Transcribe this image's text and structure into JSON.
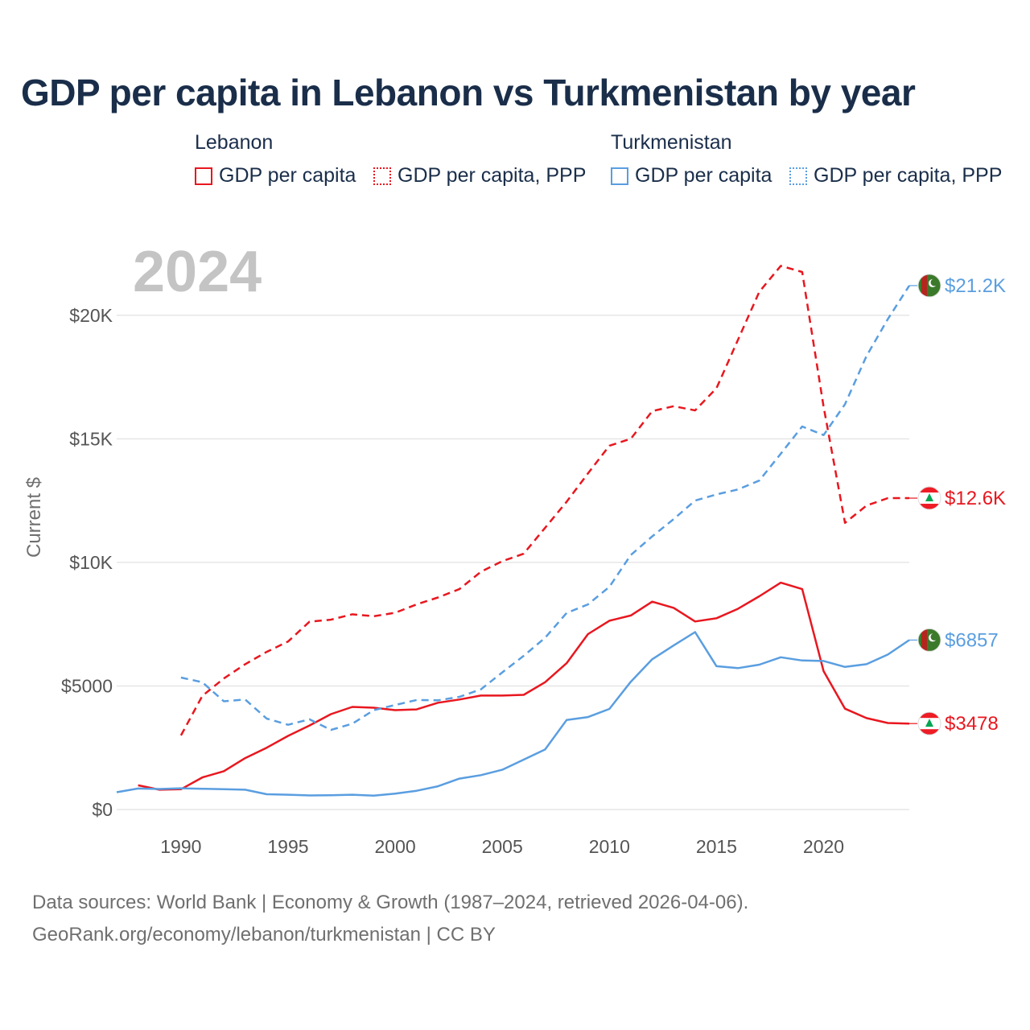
{
  "title": "GDP per capita in Lebanon vs Turkmenistan by year",
  "legend": {
    "groups": [
      {
        "name": "Lebanon",
        "color": "#e8171f",
        "items": [
          "GDP per capita",
          "GDP per capita, PPP"
        ]
      },
      {
        "name": "Turkmenistan",
        "color": "#5a9ee0",
        "items": [
          "GDP per capita",
          "GDP per capita, PPP"
        ]
      }
    ]
  },
  "footer": {
    "line1": "Data sources: World Bank | Economy & Growth (1987–2024, retrieved 2026-04-06).",
    "line2": "GeoRank.org/economy/lebanon/turkmenistan | CC BY"
  },
  "chart_data": {
    "type": "line",
    "title": "GDP per capita in Lebanon vs Turkmenistan by year",
    "year_label": "2024",
    "xlabel": "",
    "ylabel": "Current $",
    "xlim": [
      1987,
      2024
    ],
    "ylim": [
      0,
      22500
    ],
    "x_ticks": [
      1990,
      1995,
      2000,
      2005,
      2010,
      2015,
      2020
    ],
    "y_ticks": [
      {
        "value": 0,
        "label": "$0"
      },
      {
        "value": 5000,
        "label": "$5000"
      },
      {
        "value": 10000,
        "label": "$10K"
      },
      {
        "value": 15000,
        "label": "$15K"
      },
      {
        "value": 20000,
        "label": "$20K"
      }
    ],
    "grid": true,
    "series": [
      {
        "name": "Lebanon GDP per capita",
        "country": "Lebanon",
        "style": "solid",
        "color": "#e8171f",
        "end_label": "$3478",
        "flag": "lebanon",
        "points": [
          [
            1988,
            980
          ],
          [
            1989,
            800
          ],
          [
            1990,
            820
          ],
          [
            1991,
            1300
          ],
          [
            1992,
            1550
          ],
          [
            1993,
            2080
          ],
          [
            1994,
            2500
          ],
          [
            1995,
            2980
          ],
          [
            1996,
            3400
          ],
          [
            1997,
            3860
          ],
          [
            1998,
            4150
          ],
          [
            1999,
            4120
          ],
          [
            2000,
            4020
          ],
          [
            2001,
            4050
          ],
          [
            2002,
            4320
          ],
          [
            2003,
            4450
          ],
          [
            2004,
            4610
          ],
          [
            2005,
            4610
          ],
          [
            2006,
            4640
          ],
          [
            2007,
            5150
          ],
          [
            2008,
            5920
          ],
          [
            2009,
            7100
          ],
          [
            2010,
            7640
          ],
          [
            2011,
            7850
          ],
          [
            2012,
            8410
          ],
          [
            2013,
            8160
          ],
          [
            2014,
            7610
          ],
          [
            2015,
            7740
          ],
          [
            2016,
            8120
          ],
          [
            2017,
            8630
          ],
          [
            2018,
            9180
          ],
          [
            2019,
            8920
          ],
          [
            2020,
            5600
          ],
          [
            2021,
            4080
          ],
          [
            2022,
            3700
          ],
          [
            2023,
            3500
          ],
          [
            2024,
            3478
          ]
        ]
      },
      {
        "name": "Lebanon GDP per capita, PPP",
        "country": "Lebanon",
        "style": "dashed",
        "color": "#e8171f",
        "end_label": "$12.6K",
        "flag": "lebanon",
        "points": [
          [
            1990,
            3000
          ],
          [
            1991,
            4600
          ],
          [
            1992,
            5300
          ],
          [
            1993,
            5880
          ],
          [
            1994,
            6380
          ],
          [
            1995,
            6800
          ],
          [
            1996,
            7600
          ],
          [
            1997,
            7680
          ],
          [
            1998,
            7900
          ],
          [
            1999,
            7820
          ],
          [
            2000,
            7960
          ],
          [
            2001,
            8300
          ],
          [
            2002,
            8580
          ],
          [
            2003,
            8920
          ],
          [
            2004,
            9620
          ],
          [
            2005,
            10050
          ],
          [
            2006,
            10350
          ],
          [
            2007,
            11400
          ],
          [
            2008,
            12450
          ],
          [
            2009,
            13600
          ],
          [
            2010,
            14720
          ],
          [
            2011,
            15000
          ],
          [
            2012,
            16120
          ],
          [
            2013,
            16320
          ],
          [
            2014,
            16150
          ],
          [
            2015,
            17050
          ],
          [
            2016,
            19000
          ],
          [
            2017,
            20950
          ],
          [
            2018,
            22000
          ],
          [
            2019,
            21750
          ],
          [
            2020,
            16300
          ],
          [
            2021,
            11600
          ],
          [
            2022,
            12300
          ],
          [
            2023,
            12600
          ],
          [
            2024,
            12600
          ]
        ]
      },
      {
        "name": "Turkmenistan GDP per capita",
        "country": "Turkmenistan",
        "style": "solid",
        "color": "#5a9ee0",
        "end_label": "$6857",
        "flag": "turkmenistan",
        "points": [
          [
            1987,
            700
          ],
          [
            1988,
            850
          ],
          [
            1989,
            830
          ],
          [
            1990,
            860
          ],
          [
            1991,
            840
          ],
          [
            1992,
            820
          ],
          [
            1993,
            800
          ],
          [
            1994,
            620
          ],
          [
            1995,
            600
          ],
          [
            1996,
            570
          ],
          [
            1997,
            580
          ],
          [
            1998,
            600
          ],
          [
            1999,
            560
          ],
          [
            2000,
            640
          ],
          [
            2001,
            760
          ],
          [
            2002,
            940
          ],
          [
            2003,
            1250
          ],
          [
            2004,
            1390
          ],
          [
            2005,
            1610
          ],
          [
            2006,
            2020
          ],
          [
            2007,
            2430
          ],
          [
            2008,
            3620
          ],
          [
            2009,
            3740
          ],
          [
            2010,
            4070
          ],
          [
            2011,
            5170
          ],
          [
            2012,
            6080
          ],
          [
            2013,
            6640
          ],
          [
            2014,
            7180
          ],
          [
            2015,
            5800
          ],
          [
            2016,
            5720
          ],
          [
            2017,
            5860
          ],
          [
            2018,
            6160
          ],
          [
            2019,
            6030
          ],
          [
            2020,
            6010
          ],
          [
            2021,
            5770
          ],
          [
            2022,
            5880
          ],
          [
            2023,
            6270
          ],
          [
            2024,
            6857
          ]
        ]
      },
      {
        "name": "Turkmenistan GDP per capita, PPP",
        "country": "Turkmenistan",
        "style": "dashed",
        "color": "#5a9ee0",
        "end_label": "$21.2K",
        "flag": "turkmenistan",
        "points": [
          [
            1990,
            5340
          ],
          [
            1991,
            5150
          ],
          [
            1992,
            4380
          ],
          [
            1993,
            4450
          ],
          [
            1994,
            3680
          ],
          [
            1995,
            3430
          ],
          [
            1996,
            3650
          ],
          [
            1997,
            3220
          ],
          [
            1998,
            3470
          ],
          [
            1999,
            4020
          ],
          [
            2000,
            4230
          ],
          [
            2001,
            4430
          ],
          [
            2002,
            4420
          ],
          [
            2003,
            4560
          ],
          [
            2004,
            4860
          ],
          [
            2005,
            5550
          ],
          [
            2006,
            6220
          ],
          [
            2007,
            6950
          ],
          [
            2008,
            7950
          ],
          [
            2009,
            8300
          ],
          [
            2010,
            9010
          ],
          [
            2011,
            10300
          ],
          [
            2012,
            11050
          ],
          [
            2013,
            11750
          ],
          [
            2014,
            12500
          ],
          [
            2015,
            12750
          ],
          [
            2016,
            12950
          ],
          [
            2017,
            13310
          ],
          [
            2018,
            14400
          ],
          [
            2019,
            15500
          ],
          [
            2020,
            15150
          ],
          [
            2021,
            16400
          ],
          [
            2022,
            18350
          ],
          [
            2023,
            19850
          ],
          [
            2024,
            21200
          ]
        ]
      }
    ]
  }
}
